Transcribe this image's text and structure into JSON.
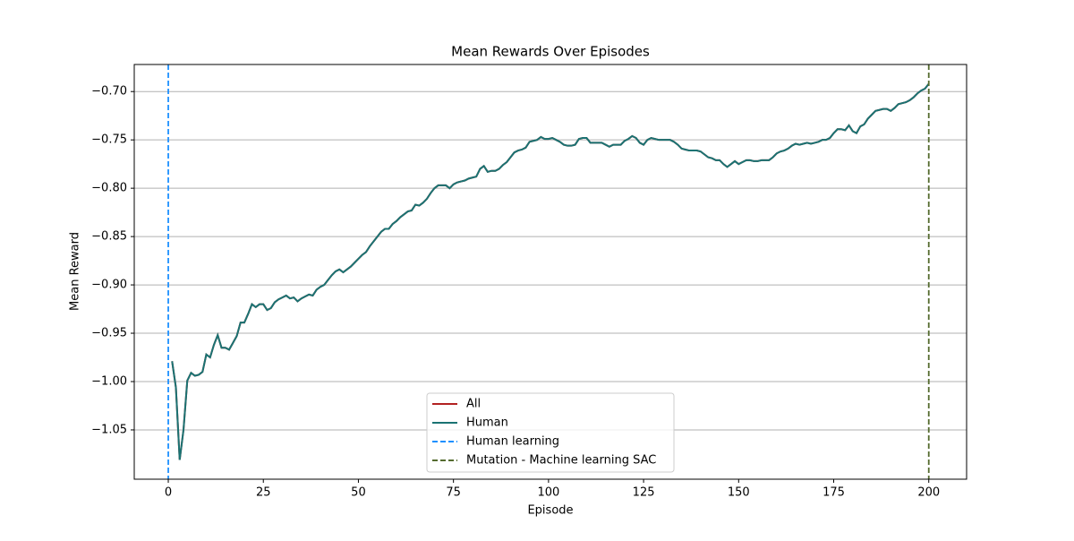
{
  "chart_data": {
    "type": "line",
    "title": "Mean Rewards Over Episodes",
    "x_label": "Episode",
    "y_label": "Mean Reward",
    "xlim": [
      -8.95,
      209.95
    ],
    "ylim": [
      -1.101,
      -0.672
    ],
    "xticks": [
      0,
      25,
      50,
      75,
      100,
      125,
      150,
      175,
      200
    ],
    "yticks": [
      {
        "value": -1.05,
        "label": "−1.05"
      },
      {
        "value": -1.0,
        "label": "−1.00"
      },
      {
        "value": -0.95,
        "label": "−0.95"
      },
      {
        "value": -0.9,
        "label": "−0.90"
      },
      {
        "value": -0.85,
        "label": "−0.85"
      },
      {
        "value": -0.8,
        "label": "−0.80"
      },
      {
        "value": -0.75,
        "label": "−0.75"
      },
      {
        "value": -0.7,
        "label": "−0.70"
      }
    ],
    "grid": "y",
    "legend": "lower center",
    "x": [
      1,
      2,
      3,
      4,
      5,
      6,
      7,
      8,
      9,
      10,
      11,
      12,
      13,
      14,
      15,
      16,
      17,
      18,
      19,
      20,
      21,
      22,
      23,
      24,
      25,
      26,
      27,
      28,
      29,
      30,
      31,
      32,
      33,
      34,
      35,
      36,
      37,
      38,
      39,
      40,
      41,
      42,
      43,
      44,
      45,
      46,
      47,
      48,
      49,
      50,
      51,
      52,
      53,
      54,
      55,
      56,
      57,
      58,
      59,
      60,
      61,
      62,
      63,
      64,
      65,
      66,
      67,
      68,
      69,
      70,
      71,
      72,
      73,
      74,
      75,
      76,
      77,
      78,
      79,
      80,
      81,
      82,
      83,
      84,
      85,
      86,
      87,
      88,
      89,
      90,
      91,
      92,
      93,
      94,
      95,
      96,
      97,
      98,
      99,
      100,
      101,
      102,
      103,
      104,
      105,
      106,
      107,
      108,
      109,
      110,
      111,
      112,
      113,
      114,
      115,
      116,
      117,
      118,
      119,
      120,
      121,
      122,
      123,
      124,
      125,
      126,
      127,
      128,
      129,
      130,
      131,
      132,
      133,
      134,
      135,
      136,
      137,
      138,
      139,
      140,
      141,
      142,
      143,
      144,
      145,
      146,
      147,
      148,
      149,
      150,
      151,
      152,
      153,
      154,
      155,
      156,
      157,
      158,
      159,
      160,
      161,
      162,
      163,
      164,
      165,
      166,
      167,
      168,
      169,
      170,
      171,
      172,
      173,
      174,
      175,
      176,
      177,
      178,
      179,
      180,
      181,
      182,
      183,
      184,
      185,
      186,
      187,
      188,
      189,
      190,
      191,
      192,
      193,
      194,
      195,
      196,
      197,
      198,
      199,
      200
    ],
    "series": [
      {
        "name": "All",
        "color": "#b22222",
        "values": [
          -0.979,
          -1.006,
          -1.081,
          -1.05,
          -0.999,
          -0.991,
          -0.994,
          -0.993,
          -0.99,
          -0.972,
          -0.975,
          -0.962,
          -0.952,
          -0.965,
          -0.965,
          -0.967,
          -0.96,
          -0.953,
          -0.939,
          -0.939,
          -0.93,
          -0.92,
          -0.923,
          -0.92,
          -0.92,
          -0.926,
          -0.924,
          -0.918,
          -0.915,
          -0.913,
          -0.911,
          -0.914,
          -0.913,
          -0.917,
          -0.914,
          -0.912,
          -0.91,
          -0.911,
          -0.905,
          -0.902,
          -0.9,
          -0.895,
          -0.89,
          -0.886,
          -0.884,
          -0.887,
          -0.884,
          -0.881,
          -0.877,
          -0.873,
          -0.869,
          -0.866,
          -0.86,
          -0.855,
          -0.85,
          -0.845,
          -0.842,
          -0.842,
          -0.837,
          -0.834,
          -0.83,
          -0.827,
          -0.824,
          -0.823,
          -0.817,
          -0.818,
          -0.815,
          -0.811,
          -0.805,
          -0.8,
          -0.797,
          -0.797,
          -0.797,
          -0.8,
          -0.796,
          -0.794,
          -0.793,
          -0.792,
          -0.79,
          -0.789,
          -0.788,
          -0.78,
          -0.777,
          -0.783,
          -0.782,
          -0.782,
          -0.78,
          -0.776,
          -0.773,
          -0.768,
          -0.763,
          -0.761,
          -0.76,
          -0.758,
          -0.752,
          -0.751,
          -0.75,
          -0.747,
          -0.749,
          -0.749,
          -0.748,
          -0.75,
          -0.752,
          -0.755,
          -0.756,
          -0.756,
          -0.755,
          -0.749,
          -0.748,
          -0.748,
          -0.753,
          -0.753,
          -0.753,
          -0.753,
          -0.755,
          -0.757,
          -0.755,
          -0.755,
          -0.755,
          -0.751,
          -0.749,
          -0.746,
          -0.748,
          -0.753,
          -0.755,
          -0.75,
          -0.748,
          -0.749,
          -0.75,
          -0.75,
          -0.75,
          -0.75,
          -0.752,
          -0.755,
          -0.759,
          -0.76,
          -0.761,
          -0.761,
          -0.761,
          -0.762,
          -0.765,
          -0.768,
          -0.769,
          -0.771,
          -0.771,
          -0.775,
          -0.778,
          -0.775,
          -0.772,
          -0.775,
          -0.773,
          -0.771,
          -0.771,
          -0.772,
          -0.772,
          -0.771,
          -0.771,
          -0.771,
          -0.768,
          -0.764,
          -0.762,
          -0.761,
          -0.759,
          -0.756,
          -0.754,
          -0.755,
          -0.754,
          -0.753,
          -0.754,
          -0.753,
          -0.752,
          -0.75,
          -0.75,
          -0.748,
          -0.743,
          -0.739,
          -0.739,
          -0.74,
          -0.735,
          -0.741,
          -0.743,
          -0.736,
          -0.734,
          -0.728,
          -0.724,
          -0.72,
          -0.719,
          -0.718,
          -0.718,
          -0.72,
          -0.717,
          -0.713,
          -0.712,
          -0.711,
          -0.709,
          -0.706,
          -0.702,
          -0.699,
          -0.697,
          -0.692
        ]
      },
      {
        "name": "Human",
        "color": "#1a7373",
        "values": [
          -0.979,
          -1.006,
          -1.081,
          -1.05,
          -0.999,
          -0.991,
          -0.994,
          -0.993,
          -0.99,
          -0.972,
          -0.975,
          -0.962,
          -0.952,
          -0.965,
          -0.965,
          -0.967,
          -0.96,
          -0.953,
          -0.939,
          -0.939,
          -0.93,
          -0.92,
          -0.923,
          -0.92,
          -0.92,
          -0.926,
          -0.924,
          -0.918,
          -0.915,
          -0.913,
          -0.911,
          -0.914,
          -0.913,
          -0.917,
          -0.914,
          -0.912,
          -0.91,
          -0.911,
          -0.905,
          -0.902,
          -0.9,
          -0.895,
          -0.89,
          -0.886,
          -0.884,
          -0.887,
          -0.884,
          -0.881,
          -0.877,
          -0.873,
          -0.869,
          -0.866,
          -0.86,
          -0.855,
          -0.85,
          -0.845,
          -0.842,
          -0.842,
          -0.837,
          -0.834,
          -0.83,
          -0.827,
          -0.824,
          -0.823,
          -0.817,
          -0.818,
          -0.815,
          -0.811,
          -0.805,
          -0.8,
          -0.797,
          -0.797,
          -0.797,
          -0.8,
          -0.796,
          -0.794,
          -0.793,
          -0.792,
          -0.79,
          -0.789,
          -0.788,
          -0.78,
          -0.777,
          -0.783,
          -0.782,
          -0.782,
          -0.78,
          -0.776,
          -0.773,
          -0.768,
          -0.763,
          -0.761,
          -0.76,
          -0.758,
          -0.752,
          -0.751,
          -0.75,
          -0.747,
          -0.749,
          -0.749,
          -0.748,
          -0.75,
          -0.752,
          -0.755,
          -0.756,
          -0.756,
          -0.755,
          -0.749,
          -0.748,
          -0.748,
          -0.753,
          -0.753,
          -0.753,
          -0.753,
          -0.755,
          -0.757,
          -0.755,
          -0.755,
          -0.755,
          -0.751,
          -0.749,
          -0.746,
          -0.748,
          -0.753,
          -0.755,
          -0.75,
          -0.748,
          -0.749,
          -0.75,
          -0.75,
          -0.75,
          -0.75,
          -0.752,
          -0.755,
          -0.759,
          -0.76,
          -0.761,
          -0.761,
          -0.761,
          -0.762,
          -0.765,
          -0.768,
          -0.769,
          -0.771,
          -0.771,
          -0.775,
          -0.778,
          -0.775,
          -0.772,
          -0.775,
          -0.773,
          -0.771,
          -0.771,
          -0.772,
          -0.772,
          -0.771,
          -0.771,
          -0.771,
          -0.768,
          -0.764,
          -0.762,
          -0.761,
          -0.759,
          -0.756,
          -0.754,
          -0.755,
          -0.754,
          -0.753,
          -0.754,
          -0.753,
          -0.752,
          -0.75,
          -0.75,
          -0.748,
          -0.743,
          -0.739,
          -0.739,
          -0.74,
          -0.735,
          -0.741,
          -0.743,
          -0.736,
          -0.734,
          -0.728,
          -0.724,
          -0.72,
          -0.719,
          -0.718,
          -0.718,
          -0.72,
          -0.717,
          -0.713,
          -0.712,
          -0.711,
          -0.709,
          -0.706,
          -0.702,
          -0.699,
          -0.697,
          -0.692
        ]
      }
    ],
    "vlines": [
      {
        "name": "Human learning",
        "color": "#1e90ff",
        "x": 0
      },
      {
        "name": "Mutation - Machine learning SAC",
        "color": "#556b2f",
        "x": 200
      }
    ]
  }
}
